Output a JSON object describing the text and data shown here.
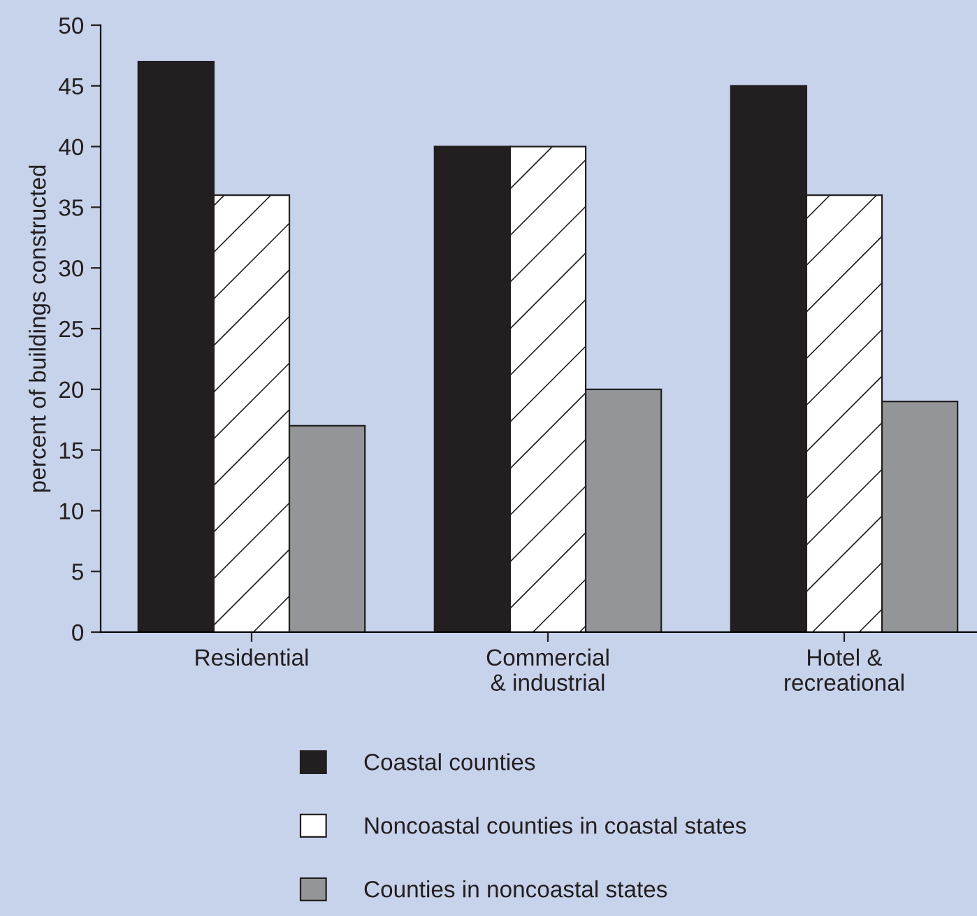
{
  "chart_data": {
    "type": "bar",
    "ylabel": "percent of buildings constructed",
    "categories": [
      "Residential",
      "Commercial\n& industrial",
      "Hotel &\nrecreational"
    ],
    "series": [
      {
        "name": "Coastal counties",
        "color": "#231f20",
        "values": [
          47,
          40,
          45
        ]
      },
      {
        "name": "Noncoastal counties in coastal states",
        "color": "#ffffff",
        "values": [
          36,
          40,
          36
        ]
      },
      {
        "name": "Counties in noncoastal states",
        "color": "#939598",
        "values": [
          17,
          20,
          19
        ]
      }
    ],
    "ylim": [
      0,
      50
    ],
    "yticks": [
      0,
      5,
      10,
      15,
      20,
      25,
      30,
      35,
      40,
      45,
      50
    ],
    "grid": false,
    "legend": "bottom"
  }
}
